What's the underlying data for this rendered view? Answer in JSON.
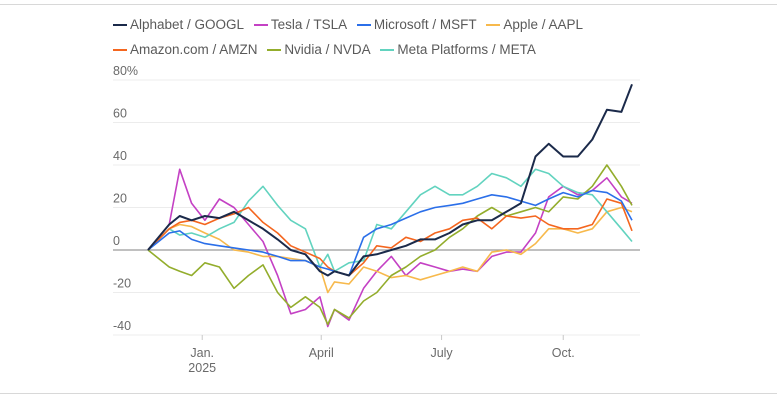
{
  "chart_data": {
    "type": "line",
    "title": "",
    "xlabel": "",
    "ylabel": "",
    "y_unit_label": "80%",
    "ylim": [
      -40,
      80
    ],
    "yticks": [
      80,
      60,
      40,
      20,
      0,
      -20,
      -40
    ],
    "ytick_labels": [
      "80%",
      "60",
      "40",
      "20",
      "0",
      "-20",
      "-40"
    ],
    "x_unit": "days since 2024-11-21",
    "xlim": [
      0,
      366
    ],
    "xticks": [
      {
        "x": 41,
        "label": "Jan.",
        "sublabel": "2025"
      },
      {
        "x": 131,
        "label": "April",
        "sublabel": ""
      },
      {
        "x": 222,
        "label": "July",
        "sublabel": ""
      },
      {
        "x": 314,
        "label": "Oct.",
        "sublabel": ""
      }
    ],
    "grid": true,
    "legend_position": "top",
    "x": [
      0,
      16,
      24,
      33,
      43,
      54,
      65,
      76,
      87,
      98,
      108,
      119,
      130,
      136,
      141,
      152,
      163,
      173,
      184,
      195,
      206,
      217,
      228,
      238,
      249,
      260,
      271,
      282,
      293,
      303,
      314,
      325,
      336,
      347,
      358,
      366
    ],
    "series": [
      {
        "name": "Tesla / TSLA",
        "color": "#c441c4",
        "values": [
          0,
          12,
          38,
          22,
          14,
          24,
          20,
          12,
          4,
          -12,
          -30,
          -28,
          -22,
          -36,
          -28,
          -33,
          -18,
          -10,
          -3,
          -12,
          -6,
          -8,
          -10,
          -9,
          -10,
          -3,
          -1,
          -1,
          8,
          25,
          30,
          26,
          28,
          34,
          25,
          22
        ]
      },
      {
        "name": "Apple / AAPL",
        "color": "#f7b94c",
        "values": [
          0,
          10,
          12,
          11,
          8,
          5,
          0,
          -1,
          -3,
          -3,
          -4,
          -5,
          -8,
          -20,
          -15,
          -16,
          -8,
          -10,
          -13,
          -12,
          -14,
          -12,
          -10,
          -8,
          -10,
          -1,
          0,
          -2,
          3,
          10,
          10,
          8,
          10,
          18,
          20,
          18
        ]
      },
      {
        "name": "Nvidia / NVDA",
        "color": "#93ad2c",
        "values": [
          0,
          -8,
          -10,
          -12,
          -6,
          -8,
          -18,
          -12,
          -7,
          -20,
          -27,
          -22,
          -27,
          -35,
          -28,
          -32,
          -24,
          -20,
          -12,
          -8,
          -3,
          0,
          6,
          10,
          16,
          20,
          16,
          18,
          20,
          18,
          25,
          24,
          30,
          40,
          30,
          21
        ]
      },
      {
        "name": "Meta Platforms / META",
        "color": "#62d3bf",
        "values": [
          0,
          10,
          7,
          8,
          6,
          10,
          13,
          23,
          30,
          21,
          14,
          10,
          -8,
          -2,
          -10,
          -6,
          -5,
          12,
          10,
          18,
          26,
          30,
          26,
          26,
          30,
          36,
          34,
          30,
          38,
          36,
          30,
          27,
          26,
          18,
          10,
          4
        ]
      },
      {
        "name": "Amazon.com / AMZN",
        "color": "#f4661f",
        "values": [
          0,
          10,
          13,
          14,
          12,
          15,
          17,
          20,
          13,
          8,
          2,
          -1,
          -4,
          -8,
          -10,
          -12,
          -6,
          2,
          1,
          6,
          4,
          8,
          10,
          14,
          15,
          10,
          16,
          15,
          16,
          12,
          10,
          10,
          12,
          24,
          22,
          9
        ]
      },
      {
        "name": "Microsoft / MSFT",
        "color": "#2b6fe9",
        "values": [
          0,
          8,
          9,
          5,
          3,
          2,
          1,
          0,
          -1,
          -3,
          -5,
          -5,
          -8,
          -9,
          -10,
          -12,
          6,
          10,
          12,
          15,
          18,
          20,
          21,
          22,
          24,
          26,
          25,
          23,
          21,
          24,
          27,
          25,
          28,
          27,
          23,
          14
        ]
      },
      {
        "name": "Alphabet / GOOGL",
        "color": "#1b2a4a",
        "values": [
          0,
          12,
          16,
          14,
          16,
          15,
          18,
          14,
          10,
          5,
          0,
          -2,
          -10,
          -12,
          -10,
          -12,
          -3,
          -2,
          0,
          2,
          5,
          5,
          8,
          12,
          14,
          14,
          18,
          22,
          44,
          50,
          44,
          44,
          52,
          66,
          65,
          78
        ]
      }
    ],
    "legend_order": [
      "Alphabet / GOOGL",
      "Tesla / TSLA",
      "Microsoft / MSFT",
      "Apple / AAPL",
      "Amazon.com / AMZN",
      "Nvidia / NVDA",
      "Meta Platforms / META"
    ]
  }
}
